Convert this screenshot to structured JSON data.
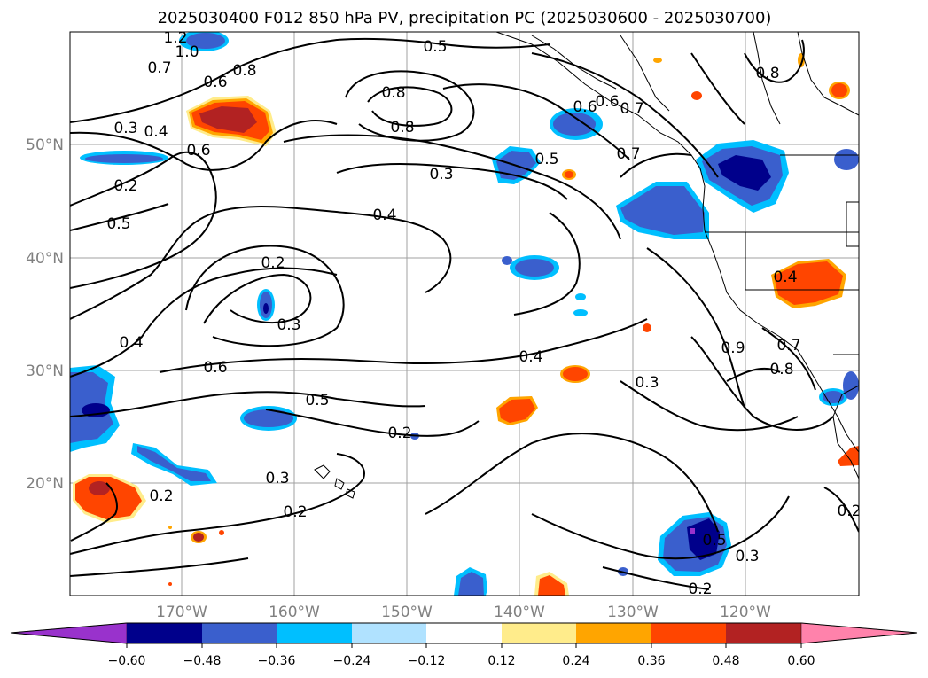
{
  "title": "2025030400 F012 850 hPa PV, precipitation PC (2025030600 - 2025030700)",
  "map": {
    "lat_ticks": [
      "50°N",
      "40°N",
      "30°N",
      "20°N"
    ],
    "lon_ticks": [
      "170°W",
      "160°W",
      "150°W",
      "140°W",
      "130°W",
      "120°W"
    ],
    "contour_labels": [
      "1.2",
      "1.0",
      "0.7",
      "0.8",
      "0.5",
      "0.6",
      "0.3",
      "0.4",
      "0.8",
      "0.6",
      "0.6",
      "0.5",
      "0.7",
      "0.2",
      "0.5",
      "0.3",
      "0.4",
      "0.2",
      "0.3",
      "0.4",
      "0.4",
      "0.6",
      "0.5",
      "0.3",
      "0.2",
      "0.9",
      "0.8",
      "0.3",
      "0.2",
      "0.2",
      "0.5",
      "0.3",
      "0.2",
      "0.4",
      "0.7",
      "0.2",
      "0.8",
      "0.6",
      "0.7",
      "0.8"
    ],
    "colors": {
      "fill_neg": [
        "#9932cc",
        "#00008b",
        "#3a5fcd",
        "#00bfff",
        "#b0e2ff"
      ],
      "fill_pos": [
        "#ffec8b",
        "#ffa500",
        "#ff4500",
        "#b22222",
        "#ff82ab"
      ]
    }
  },
  "colorbar": {
    "ticks": [
      "−0.60",
      "−0.48",
      "−0.36",
      "−0.24",
      "−0.12",
      "0.12",
      "0.24",
      "0.36",
      "0.48",
      "0.60"
    ],
    "colors": [
      "#9932cc",
      "#00008b",
      "#3a5fcd",
      "#00bfff",
      "#b0e2ff",
      "#ffffff",
      "#ffec8b",
      "#ffa500",
      "#ff4500",
      "#b22222",
      "#ff82ab"
    ]
  }
}
